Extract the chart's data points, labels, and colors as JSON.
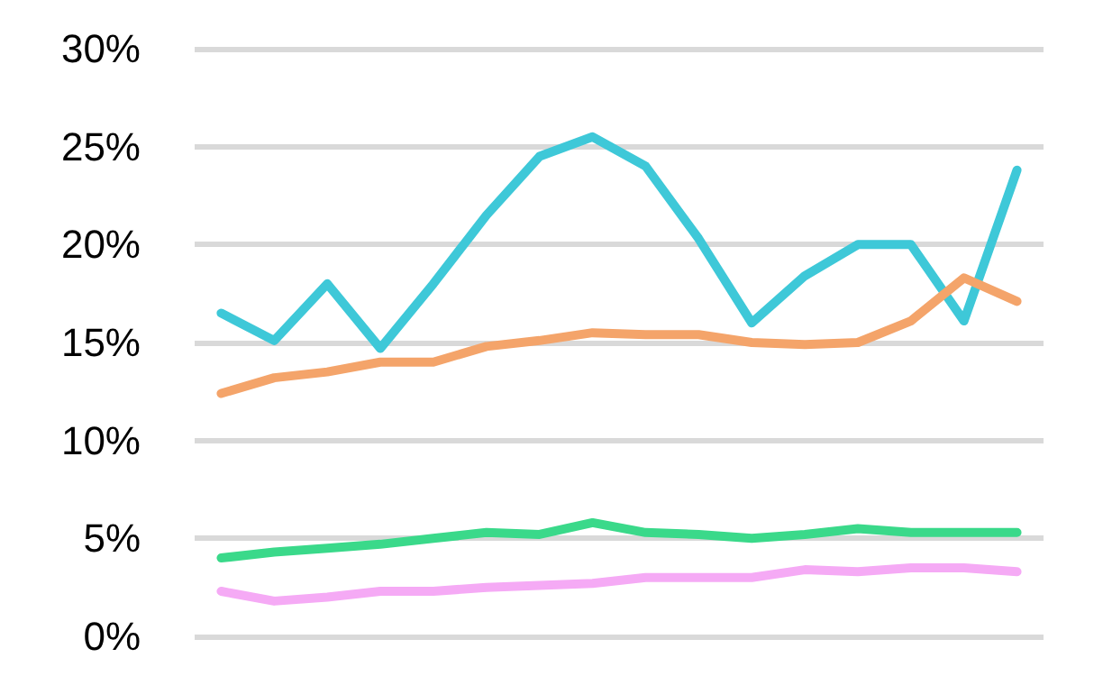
{
  "chart_data": {
    "type": "line",
    "categories": [
      null,
      null,
      null,
      null,
      null,
      null,
      null,
      null,
      null,
      null,
      null,
      null,
      null,
      null,
      null,
      null
    ],
    "series": [
      {
        "color": "#3ec8d8",
        "values": [
          16.5,
          15.1,
          18,
          14.7,
          18,
          21.5,
          24.5,
          25.5,
          24,
          20.3,
          16,
          18.4,
          20,
          20,
          16.1,
          23.8
        ]
      },
      {
        "color": "#f4a46a",
        "values": [
          12.4,
          13.2,
          13.5,
          14,
          14,
          14.8,
          15.1,
          15.5,
          15.4,
          15.4,
          15,
          14.9,
          15,
          16.1,
          18.3,
          17.1
        ]
      },
      {
        "color": "#3ad98a",
        "values": [
          4,
          4.3,
          4.5,
          4.7,
          5,
          5.3,
          5.2,
          5.8,
          5.3,
          5.2,
          5,
          5.2,
          5.5,
          5.3,
          5.3,
          5.3
        ]
      },
      {
        "color": "#f5aaf5",
        "values": [
          2.3,
          1.8,
          2,
          2.3,
          2.3,
          2.5,
          2.6,
          2.7,
          3,
          3,
          3,
          3.4,
          3.3,
          3.5,
          3.5,
          3.3
        ]
      }
    ],
    "ylim": [
      0,
      30
    ],
    "yticks": [
      {
        "value": 0,
        "label": "0%"
      },
      {
        "value": 5,
        "label": "5%"
      },
      {
        "value": 10,
        "label": "10%"
      },
      {
        "value": 15,
        "label": "15%"
      },
      {
        "value": 20,
        "label": "20%"
      },
      {
        "value": 25,
        "label": "25%"
      },
      {
        "value": 30,
        "label": "30%"
      }
    ],
    "grid": "y",
    "marker": "none",
    "line_style": "solid",
    "tick_labels": "y"
  }
}
